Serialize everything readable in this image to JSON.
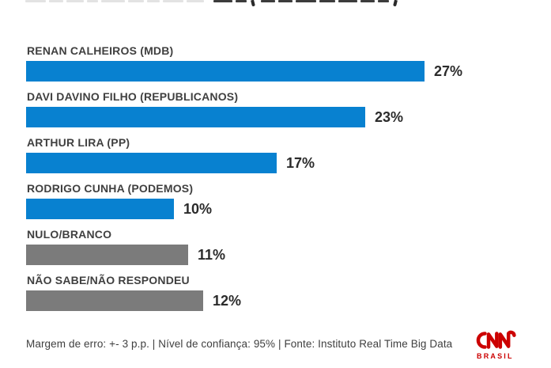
{
  "chart_data": {
    "type": "bar",
    "orientation": "horizontal",
    "title": "",
    "xlabel": "",
    "ylabel": "",
    "xlim": [
      0,
      27
    ],
    "grid": false,
    "legend": false,
    "value_label_position": "right-of-bar",
    "categories": [
      "RENAN CALHEIROS (MDB)",
      "DAVI DAVINO FILHO (REPUBLICANOS)",
      "ARTHUR LIRA (PP)",
      "RODRIGO CUNHA (PODEMOS)",
      "NULO/BRANCO",
      "NÃO SABE/NÃO RESPONDEU"
    ],
    "values": [
      27,
      23,
      17,
      10,
      11,
      12
    ],
    "value_labels": [
      "27%",
      "23%",
      "17%",
      "10%",
      "11%",
      "12%"
    ],
    "bar_colors": [
      "#0881d0",
      "#0881d0",
      "#0881d0",
      "#0881d0",
      "#7b7b7b",
      "#7b7b7b"
    ]
  },
  "footer": {
    "note": "Margem de erro: +- 3 p.p. | Nível de confiança: 95% | Fonte: Instituto Real Time Big Data"
  },
  "branding": {
    "logo": "CNN",
    "sublabel": "BRASIL",
    "color": "#cc0000"
  },
  "colors": {
    "bar_blue": "#0881d0",
    "bar_gray": "#7b7b7b",
    "category_label": "#404040",
    "value_label": "#2b2b2b",
    "footer_text": "#3f3f3f",
    "background": "#ffffff"
  }
}
